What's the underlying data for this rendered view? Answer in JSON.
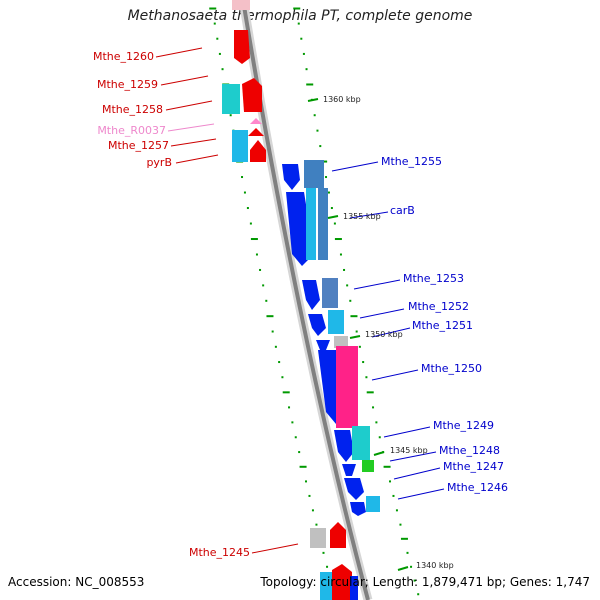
{
  "title": "Methanosaeta thermophila PT, complete genome",
  "footer": {
    "accession": "Accession: NC_008553",
    "summary": "Topology: circular; Length: 1,879,471 bp; Genes: 1,747"
  },
  "colors": {
    "forward_strand_label": "#cc0000",
    "reverse_strand_label": "#0000cc",
    "rna_label": "#ee88cc",
    "backbone": "#888888",
    "tick": "#009900"
  },
  "position_labels": [
    "1360 kbp",
    "1355 kbp",
    "1350 kbp",
    "1345 kbp",
    "1340 kbp"
  ],
  "genes": [
    {
      "label": "Mthe_1260",
      "strand": "forward"
    },
    {
      "label": "Mthe_1259",
      "strand": "forward"
    },
    {
      "label": "Mthe_1258",
      "strand": "forward"
    },
    {
      "label": "Mthe_R0037",
      "strand": "forward",
      "type": "rna"
    },
    {
      "label": "Mthe_1257",
      "strand": "forward"
    },
    {
      "label": "pyrB",
      "strand": "forward"
    },
    {
      "label": "Mthe_1255",
      "strand": "reverse"
    },
    {
      "label": "carB",
      "strand": "reverse"
    },
    {
      "label": "Mthe_1253",
      "strand": "reverse"
    },
    {
      "label": "Mthe_1252",
      "strand": "reverse"
    },
    {
      "label": "Mthe_1251",
      "strand": "reverse"
    },
    {
      "label": "Mthe_1250",
      "strand": "reverse"
    },
    {
      "label": "Mthe_1249",
      "strand": "reverse"
    },
    {
      "label": "Mthe_1248",
      "strand": "reverse"
    },
    {
      "label": "Mthe_1247",
      "strand": "reverse"
    },
    {
      "label": "Mthe_1246",
      "strand": "reverse"
    },
    {
      "label": "Mthe_1245",
      "strand": "forward"
    }
  ]
}
